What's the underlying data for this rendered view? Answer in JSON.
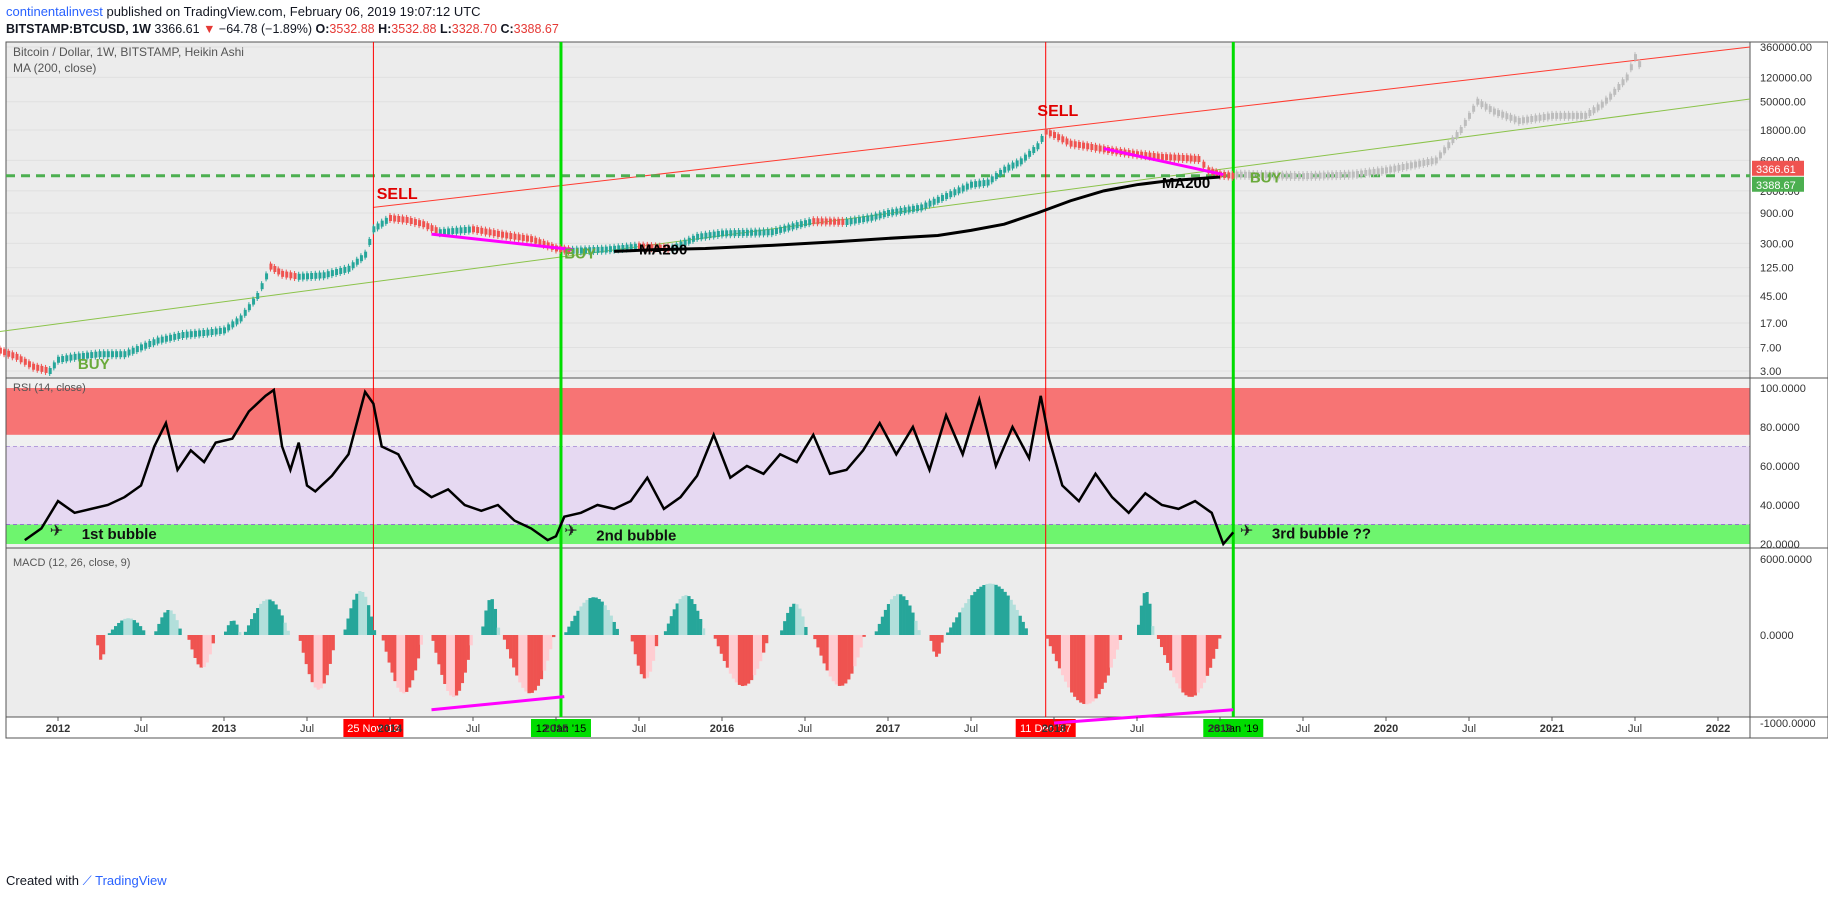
{
  "header": {
    "author": "continentalinvest",
    "published": "published on TradingView.com, February 06, 2019 19:07:12 UTC",
    "symbol": "BITSTAMP:BTCUSD, 1W",
    "last": "3366.61",
    "change": "−64.78 (−1.89%)",
    "o_label": "O:",
    "o_value": "3532.88",
    "h_label": "H:",
    "h_value": "3532.88",
    "l_label": "L:",
    "l_value": "3328.70",
    "c_label": "C:",
    "c_value": "3388.67"
  },
  "footer": {
    "created_with": "Created with",
    "brand": "TradingView"
  },
  "colors": {
    "up": "#26a69a",
    "down": "#ef5350",
    "macd_up_strong": "#26a69a",
    "macd_up_weak": "#b2dfdb",
    "macd_down_strong": "#ef5350",
    "macd_down_weak": "#ffcdd2",
    "rsi_line": "#000000",
    "ma_line": "#000000",
    "sell_line": "#ff0000",
    "buy_line": "#00dd00",
    "trend_red": "#ff3b30",
    "trend_green": "#8bc34a",
    "support": "#4caf50",
    "divergence": "#ff00ff",
    "rsi_over": "#f77474",
    "rsi_mid": "#e6d9f2",
    "rsi_under": "#6ef56e"
  },
  "chart_data": [
    {
      "type": "line",
      "title": "Bitcoin / Dollar, 1W, BITSTAMP, Heikin Ashi",
      "indicator": "MA (200, close)",
      "yscale": "log",
      "x_ticks": [
        "2012",
        "Jul",
        "2013",
        "Jul",
        "2014",
        "Jul",
        "2015",
        "Jul",
        "2016",
        "Jul",
        "2017",
        "Jul",
        "2018",
        "Jul",
        "2019",
        "Jul",
        "2020",
        "Jul",
        "2021",
        "Jul",
        "2022"
      ],
      "x_tick_dates": [
        2012.0,
        2012.5,
        2013.0,
        2013.5,
        2014.0,
        2014.5,
        2015.0,
        2015.5,
        2016.0,
        2016.5,
        2017.0,
        2017.5,
        2018.0,
        2018.5,
        2019.0,
        2019.5,
        2020.0,
        2020.5,
        2021.0,
        2021.5,
        2022.0
      ],
      "y_ticks": [
        "360000.00",
        "120000.00",
        "50000.00",
        "18000.00",
        "6000.00",
        "2000.00",
        "900.00",
        "300.00",
        "125.00",
        "45.00",
        "17.00",
        "7.00",
        "3.00"
      ],
      "y_tick_values": [
        360000,
        120000,
        50000,
        18000,
        6000,
        2000,
        900,
        300,
        125,
        45,
        17,
        7,
        3
      ],
      "price_tags": [
        {
          "label": "3366.61",
          "color": "#ef5350"
        },
        {
          "label": "3388.67",
          "color": "#4caf50"
        }
      ],
      "series": [
        {
          "name": "BTCUSD",
          "x": [
            2011.6,
            2011.75,
            2011.85,
            2011.95,
            2012.0,
            2012.1,
            2012.25,
            2012.4,
            2012.6,
            2012.75,
            2012.9,
            2013.0,
            2013.1,
            2013.2,
            2013.28,
            2013.35,
            2013.45,
            2013.6,
            2013.75,
            2013.85,
            2013.9,
            2014.0,
            2014.1,
            2014.2,
            2014.3,
            2014.5,
            2014.7,
            2014.85,
            2015.0,
            2015.1,
            2015.3,
            2015.5,
            2015.7,
            2015.85,
            2016.0,
            2016.3,
            2016.45,
            2016.55,
            2016.75,
            2016.9,
            2017.0,
            2017.2,
            2017.4,
            2017.5,
            2017.6,
            2017.7,
            2017.8,
            2017.9,
            2017.95,
            2018.0,
            2018.1,
            2018.2,
            2018.35,
            2018.5,
            2018.65,
            2018.8,
            2018.87,
            2018.93,
            2019.0,
            2019.1
          ],
          "y": [
            7,
            5,
            3.5,
            3,
            4.5,
            5,
            5.5,
            5.5,
            9,
            11,
            12,
            13,
            20,
            45,
            130,
            100,
            90,
            95,
            120,
            200,
            500,
            750,
            700,
            600,
            450,
            500,
            400,
            350,
            250,
            230,
            240,
            270,
            250,
            380,
            430,
            450,
            580,
            670,
            650,
            760,
            900,
            1100,
            1900,
            2500,
            2700,
            4300,
            5800,
            10000,
            17000,
            15000,
            11000,
            10000,
            8500,
            7500,
            6800,
            6500,
            6300,
            4200,
            3600,
            3400
          ]
        },
        {
          "name": "MA200",
          "x": [
            2015.35,
            2015.6,
            2015.9,
            2016.3,
            2016.7,
            2017.0,
            2017.3,
            2017.5,
            2017.7,
            2017.9,
            2018.1,
            2018.3,
            2018.5,
            2018.7,
            2018.9,
            2019.0
          ],
          "y": [
            225,
            240,
            250,
            280,
            320,
            360,
            400,
            480,
            600,
            900,
            1400,
            2000,
            2500,
            2900,
            3150,
            3300
          ]
        },
        {
          "name": "Future path",
          "x": [
            2019.1,
            2019.3,
            2019.5,
            2019.8,
            2020.0,
            2020.3,
            2020.45,
            2020.55,
            2020.65,
            2020.8,
            2021.0,
            2021.2,
            2021.3,
            2021.35,
            2021.45,
            2021.5,
            2021.55
          ],
          "y": [
            3600,
            3500,
            3400,
            3600,
            4200,
            6000,
            18000,
            50000,
            35000,
            25000,
            30000,
            30000,
            45000,
            60000,
            120000,
            250000,
            150000
          ]
        }
      ],
      "annotations": [
        {
          "text": "SELL",
          "color": "#e00000"
        },
        {
          "text": "SELL",
          "color": "#e00000"
        },
        {
          "text": "BUY",
          "color": "#6aaa3a"
        },
        {
          "text": "BUY",
          "color": "#6aaa3a"
        },
        {
          "text": "BUY",
          "color": "#6aaa3a"
        },
        {
          "text": "MA200",
          "color": "#000000"
        },
        {
          "text": "MA200",
          "color": "#000000"
        }
      ],
      "vertical_markers": [
        {
          "date": 2013.9,
          "label": "25 Nov '13",
          "color": "#ff0000"
        },
        {
          "date": 2015.03,
          "label": "12 Jan '15",
          "color": "#00dd00"
        },
        {
          "date": 2017.95,
          "label": "11 Dec '17",
          "color": "#ff0000"
        },
        {
          "date": 2019.08,
          "label": "28 Jan '19",
          "color": "#00dd00"
        }
      ]
    },
    {
      "type": "line",
      "title": "RSI (14, close)",
      "ylim": [
        20,
        100
      ],
      "y_ticks": [
        "100.0000",
        "80.0000",
        "60.0000",
        "40.0000",
        "20.0000"
      ],
      "y_tick_values": [
        100,
        80,
        60,
        40,
        20
      ],
      "zones": [
        {
          "from": 76,
          "to": 100
        },
        {
          "from": 30,
          "to": 70
        },
        {
          "from": 20,
          "to": 30
        }
      ],
      "labels": [
        "1st bubble",
        "2nd bubble",
        "3rd bubble ??"
      ],
      "x": [
        2011.8,
        2011.9,
        2012.0,
        2012.1,
        2012.2,
        2012.3,
        2012.4,
        2012.5,
        2012.58,
        2012.65,
        2012.72,
        2012.8,
        2012.88,
        2012.95,
        2013.05,
        2013.15,
        2013.25,
        2013.3,
        2013.35,
        2013.4,
        2013.45,
        2013.5,
        2013.55,
        2013.65,
        2013.75,
        2013.85,
        2013.9,
        2013.95,
        2014.05,
        2014.15,
        2014.25,
        2014.35,
        2014.45,
        2014.55,
        2014.65,
        2014.75,
        2014.85,
        2014.95,
        2015.0,
        2015.05,
        2015.15,
        2015.25,
        2015.35,
        2015.45,
        2015.55,
        2015.65,
        2015.75,
        2015.85,
        2015.95,
        2016.05,
        2016.15,
        2016.25,
        2016.35,
        2016.45,
        2016.55,
        2016.65,
        2016.75,
        2016.85,
        2016.95,
        2017.05,
        2017.15,
        2017.25,
        2017.35,
        2017.45,
        2017.55,
        2017.65,
        2017.75,
        2017.85,
        2017.92,
        2017.97,
        2018.05,
        2018.15,
        2018.25,
        2018.35,
        2018.45,
        2018.55,
        2018.65,
        2018.75,
        2018.85,
        2018.95,
        2019.02,
        2019.08
      ],
      "y": [
        22,
        28,
        42,
        36,
        38,
        40,
        44,
        50,
        70,
        82,
        58,
        68,
        62,
        72,
        74,
        88,
        96,
        99,
        70,
        58,
        72,
        50,
        47,
        55,
        66,
        98,
        92,
        70,
        66,
        50,
        44,
        48,
        40,
        37,
        40,
        32,
        28,
        22,
        24,
        34,
        36,
        40,
        38,
        42,
        54,
        38,
        44,
        55,
        76,
        54,
        60,
        56,
        66,
        62,
        76,
        56,
        58,
        68,
        82,
        66,
        80,
        58,
        86,
        66,
        94,
        60,
        80,
        64,
        96,
        74,
        50,
        42,
        56,
        44,
        36,
        46,
        40,
        38,
        42,
        36,
        20,
        26
      ]
    },
    {
      "type": "bar",
      "title": "MACD (12, 26, close, 9)",
      "ylim": [
        -1300,
        6000
      ],
      "y_ticks": [
        "6000.0000",
        "0.0000",
        "-1000.0000"
      ],
      "y_tick_values": [
        6000,
        0,
        -1000
      ],
      "segments": [
        {
          "x0": 2012.23,
          "x1": 2012.3,
          "v": -350
        },
        {
          "x0": 2012.3,
          "x1": 2012.58,
          "v": 1600
        },
        {
          "x0": 2012.58,
          "x1": 2012.78,
          "v": 2400
        },
        {
          "x0": 2012.78,
          "x1": 2012.98,
          "v": -450
        },
        {
          "x0": 2013.0,
          "x1": 2013.12,
          "v": 1400
        },
        {
          "x0": 2013.12,
          "x1": 2013.45,
          "v": 3400
        },
        {
          "x0": 2013.45,
          "x1": 2013.72,
          "v": -750
        },
        {
          "x0": 2013.72,
          "x1": 2013.95,
          "v": 4200
        },
        {
          "x0": 2013.95,
          "x1": 2014.25,
          "v": -800
        },
        {
          "x0": 2014.25,
          "x1": 2014.55,
          "v": -850
        },
        {
          "x0": 2014.55,
          "x1": 2014.68,
          "v": 3500
        },
        {
          "x0": 2014.68,
          "x1": 2015.05,
          "v": -800
        },
        {
          "x0": 2015.05,
          "x1": 2015.45,
          "v": 3600
        },
        {
          "x0": 2015.45,
          "x1": 2015.65,
          "v": -600
        },
        {
          "x0": 2015.65,
          "x1": 2015.95,
          "v": 3800
        },
        {
          "x0": 2015.95,
          "x1": 2016.35,
          "v": -700
        },
        {
          "x0": 2016.35,
          "x1": 2016.55,
          "v": 3000
        },
        {
          "x0": 2016.55,
          "x1": 2016.92,
          "v": -700
        },
        {
          "x0": 2016.92,
          "x1": 2017.25,
          "v": 3900
        },
        {
          "x0": 2017.25,
          "x1": 2017.35,
          "v": -300
        },
        {
          "x0": 2017.35,
          "x1": 2017.95,
          "v": 4900
        },
        {
          "x0": 2017.95,
          "x1": 2018.5,
          "v": -950
        },
        {
          "x0": 2018.5,
          "x1": 2018.62,
          "v": 4200
        },
        {
          "x0": 2018.62,
          "x1": 2019.08,
          "v": -850
        }
      ]
    }
  ]
}
